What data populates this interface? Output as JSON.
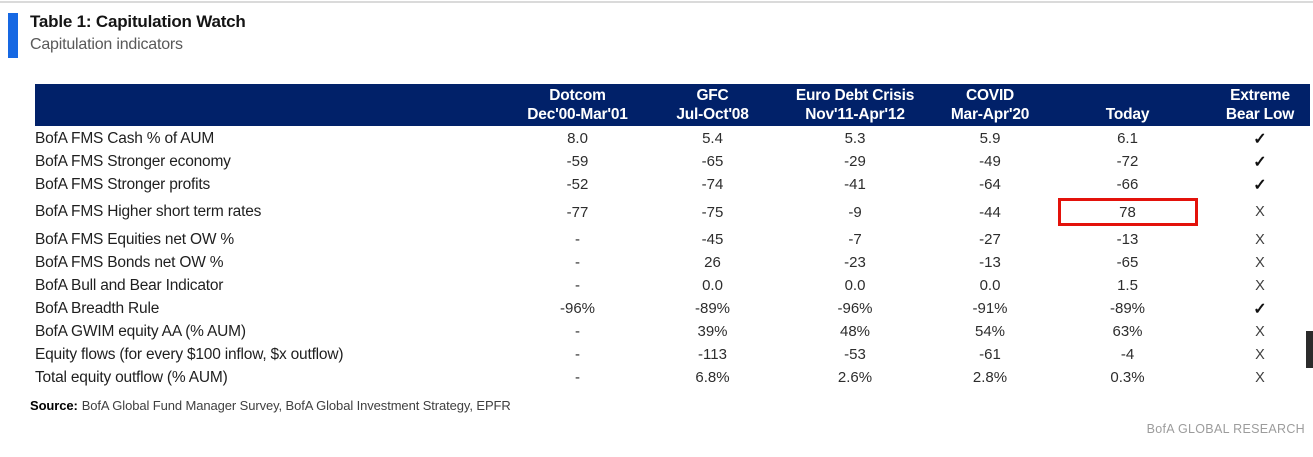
{
  "header": {
    "title": "Table 1: Capitulation Watch",
    "subtitle": "Capitulation indicators"
  },
  "chart_data": {
    "type": "table",
    "title": "Table 1: Capitulation Watch",
    "subtitle": "Capitulation indicators",
    "columns": [
      {
        "line1": "",
        "line2": ""
      },
      {
        "line1": "Dotcom",
        "line2": "Dec'00-Mar'01"
      },
      {
        "line1": "GFC",
        "line2": "Jul-Oct'08"
      },
      {
        "line1": "Euro Debt Crisis",
        "line2": "Nov'11-Apr'12"
      },
      {
        "line1": "COVID",
        "line2": "Mar-Apr'20"
      },
      {
        "line1": "",
        "line2": "Today"
      },
      {
        "line1": "Extreme",
        "line2": "Bear Low"
      }
    ],
    "rows": [
      {
        "label": "BofA FMS Cash % of AUM",
        "values": [
          "8.0",
          "5.4",
          "5.3",
          "5.9",
          "6.1"
        ],
        "extreme_bear_low": "✓",
        "highlight_today": false
      },
      {
        "label": "BofA FMS Stronger economy",
        "values": [
          "-59",
          "-65",
          "-29",
          "-49",
          "-72"
        ],
        "extreme_bear_low": "✓",
        "highlight_today": false
      },
      {
        "label": "BofA FMS Stronger profits",
        "values": [
          "-52",
          "-74",
          "-41",
          "-64",
          "-66"
        ],
        "extreme_bear_low": "✓",
        "highlight_today": false
      },
      {
        "label": "BofA FMS Higher short term rates",
        "values": [
          "-77",
          "-75",
          "-9",
          "-44",
          "78"
        ],
        "extreme_bear_low": "X",
        "highlight_today": true
      },
      {
        "label": "BofA FMS Equities net OW %",
        "values": [
          "-",
          "-45",
          "-7",
          "-27",
          "-13"
        ],
        "extreme_bear_low": "X",
        "highlight_today": false
      },
      {
        "label": "BofA FMS Bonds net OW %",
        "values": [
          "-",
          "26",
          "-23",
          "-13",
          "-65"
        ],
        "extreme_bear_low": "X",
        "highlight_today": false
      },
      {
        "label": "BofA Bull and Bear Indicator",
        "values": [
          "-",
          "0.0",
          "0.0",
          "0.0",
          "1.5"
        ],
        "extreme_bear_low": "X",
        "highlight_today": false
      },
      {
        "label": "BofA Breadth Rule",
        "values": [
          "-96%",
          "-89%",
          "-96%",
          "-91%",
          "-89%"
        ],
        "extreme_bear_low": "✓",
        "highlight_today": false
      },
      {
        "label": "BofA GWIM equity AA (% AUM)",
        "values": [
          "-",
          "39%",
          "48%",
          "54%",
          "63%"
        ],
        "extreme_bear_low": "X",
        "highlight_today": false
      },
      {
        "label": "Equity flows (for every $100 inflow, $x outflow)",
        "values": [
          "-",
          "-113",
          "-53",
          "-61",
          "-4"
        ],
        "extreme_bear_low": "X",
        "highlight_today": false
      },
      {
        "label": "Total equity outflow (% AUM)",
        "values": [
          "-",
          "6.8%",
          "2.6%",
          "2.8%",
          "0.3%"
        ],
        "extreme_bear_low": "X",
        "highlight_today": false
      }
    ]
  },
  "footer": {
    "source_label": "Source:",
    "source_text": "BofA Global Fund Manager Survey, BofA Global Investment Strategy, EPFR",
    "branding": "BofA GLOBAL RESEARCH"
  },
  "colors": {
    "header_bg": "#012169",
    "accent_bar": "#1668e3",
    "highlight_red": "#e3120b",
    "subtitle_gray": "#595959",
    "branding_gray": "#9c9c9c"
  }
}
